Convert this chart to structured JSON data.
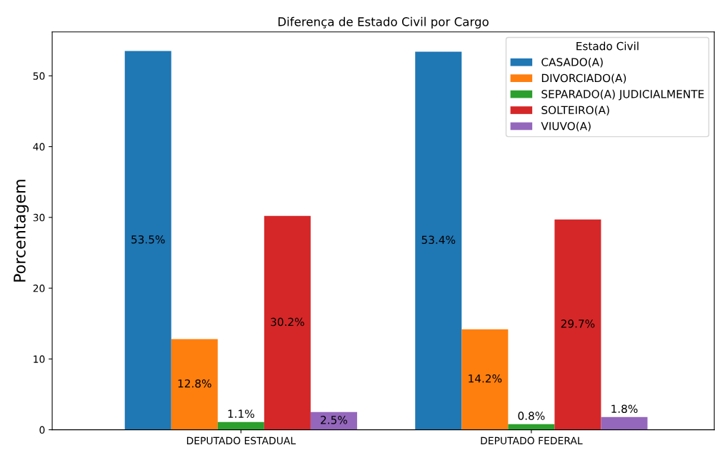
{
  "chart_data": {
    "type": "bar",
    "title": "Diferença de Estado Civil por Cargo",
    "ylabel": "Porcentagem",
    "legend_title": "Estado Civil",
    "categories": [
      "DEPUTADO ESTADUAL",
      "DEPUTADO FEDERAL"
    ],
    "series": [
      {
        "name": "CASADO(A)",
        "color": "#1f77b4",
        "values": [
          53.5,
          53.4
        ],
        "value_labels": [
          "53.5%",
          "53.4%"
        ]
      },
      {
        "name": "DIVORCIADO(A)",
        "color": "#ff7f0e",
        "values": [
          12.8,
          14.2
        ],
        "value_labels": [
          "12.8%",
          "14.2%"
        ]
      },
      {
        "name": "SEPARADO(A) JUDICIALMENTE",
        "color": "#2ca02c",
        "values": [
          1.1,
          0.8
        ],
        "value_labels": [
          "1.1%",
          "0.8%"
        ]
      },
      {
        "name": "SOLTEIRO(A)",
        "color": "#d62728",
        "values": [
          30.2,
          29.7
        ],
        "value_labels": [
          "30.2%",
          "29.7%"
        ]
      },
      {
        "name": "VIUVO(A)",
        "color": "#9467bd",
        "values": [
          2.5,
          1.8
        ],
        "value_labels": [
          "2.5%",
          "1.8%"
        ]
      }
    ],
    "ylim": [
      0,
      56.2
    ],
    "yticks": [
      0,
      10,
      20,
      30,
      40,
      50
    ],
    "grid": false,
    "legend": "top right"
  }
}
